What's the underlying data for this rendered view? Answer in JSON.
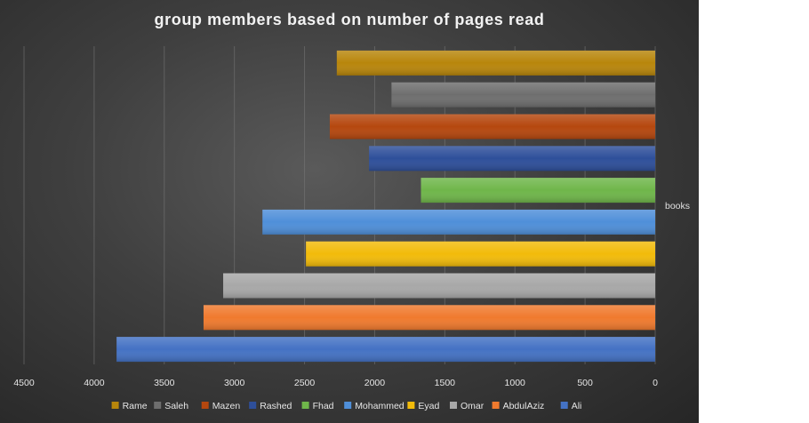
{
  "chart_data": {
    "type": "bar",
    "orientation": "horizontal",
    "title": "group members based on number of pages read",
    "categories": [
      "books"
    ],
    "xlim": [
      0,
      4500
    ],
    "x_reversed": true,
    "ticks": [
      4500,
      4000,
      3500,
      3000,
      2500,
      2000,
      1500,
      1000,
      500,
      0
    ],
    "grid": true,
    "legend_position": "bottom",
    "series": [
      {
        "name": "Rame",
        "value": 2270,
        "color": "#b8860b"
      },
      {
        "name": "Saleh",
        "value": 1880,
        "color": "#6e6e6e"
      },
      {
        "name": "Mazen",
        "value": 2320,
        "color": "#b5470e"
      },
      {
        "name": "Rashed",
        "value": 2040,
        "color": "#2e4f9a"
      },
      {
        "name": "Fhad",
        "value": 1670,
        "color": "#6fb64a"
      },
      {
        "name": "Mohammed",
        "value": 2800,
        "color": "#4f8fd9"
      },
      {
        "name": "Eyad",
        "value": 2490,
        "color": "#f2bb0a"
      },
      {
        "name": "Omar",
        "value": 3080,
        "color": "#a8a8a8"
      },
      {
        "name": "AbdulAziz",
        "value": 3220,
        "color": "#f07a2e"
      },
      {
        "name": "Ali",
        "value": 3840,
        "color": "#4472c4"
      }
    ]
  }
}
